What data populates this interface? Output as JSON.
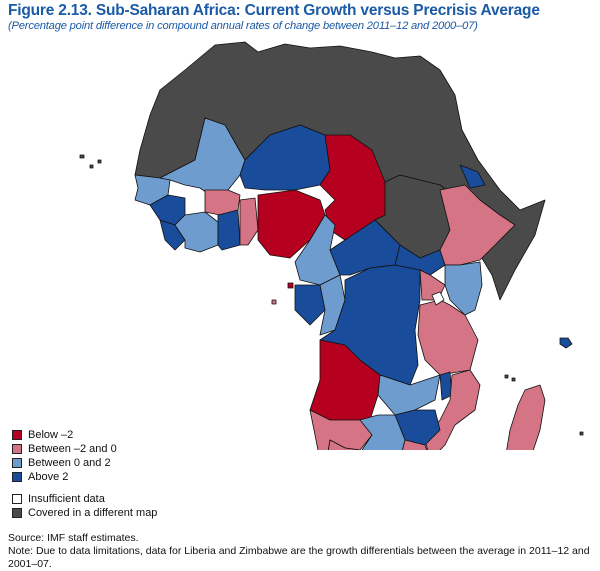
{
  "figure": {
    "title": "Figure 2.13.  Sub-Saharan Africa: Current Growth versus Precrisis Average",
    "subtitle": "(Percentage point difference in compound annual rates of change between 2011–12 and 2000–07)"
  },
  "colors": {
    "below_m2": "#b5001f",
    "between_m2_0": "#d57485",
    "between_0_2": "#6f9ccf",
    "above_2": "#1a4c9c",
    "insufficient": "#ffffff",
    "covered": "#4a4a4a",
    "border": "#111111"
  },
  "legend": {
    "items": [
      {
        "label": "Below –2",
        "color": "#b5001f"
      },
      {
        "label": "Between –2 and 0",
        "color": "#d57485"
      },
      {
        "label": "Between 0 and 2",
        "color": "#6f9ccf"
      },
      {
        "label": "Above 2",
        "color": "#1a4c9c"
      }
    ],
    "extra": [
      {
        "label": "Insufficient data",
        "color": "#ffffff"
      },
      {
        "label": "Covered in a different map",
        "color": "#4a4a4a"
      }
    ]
  },
  "footer": {
    "source": "Source: IMF staff estimates.",
    "note": "Note: Due to data limitations, data for Liberia and Zimbabwe are the growth differentials between the average in 2011–12 and 2001–07."
  }
}
